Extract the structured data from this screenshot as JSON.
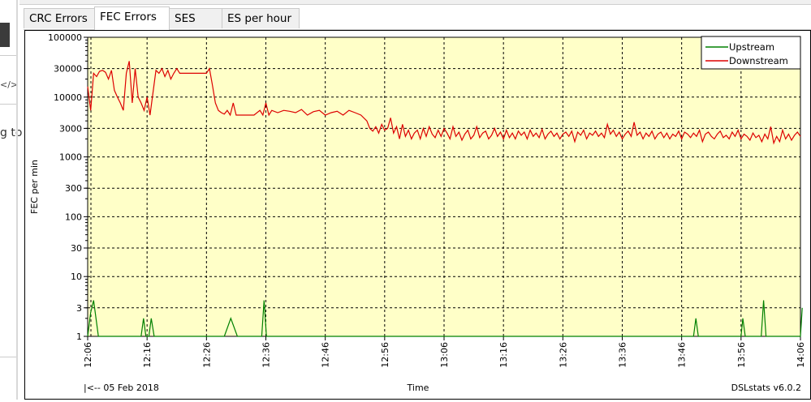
{
  "tabs": [
    {
      "label": "CRC Errors",
      "active": false
    },
    {
      "label": "FEC Errors",
      "active": true
    },
    {
      "label": "SES",
      "active": false
    },
    {
      "label": "ES per hour",
      "active": false
    }
  ],
  "left_panel": {
    "code_glyph": "</>",
    "peek_text": "g to"
  },
  "chart_footer": {
    "date_nav": "|<-- 05 Feb 2018",
    "xlabel": "Time",
    "version": "DSLstats v6.0.2"
  },
  "colors": {
    "plot_bg": "#ffffc8",
    "upstream": "#008000",
    "downstream": "#dd0000",
    "grid": "#000000"
  },
  "chart_data": {
    "type": "line",
    "title": "",
    "xlabel": "Time",
    "ylabel": "FEC per min",
    "yscale": "log",
    "ylim": [
      1,
      100000
    ],
    "yticks": [
      1,
      3,
      10,
      30,
      100,
      300,
      1000,
      3000,
      10000,
      30000,
      100000
    ],
    "ytick_labels": [
      "1",
      "3",
      "10",
      "30",
      "100",
      "300",
      "1000",
      "3000",
      "10000",
      "30000",
      "100000"
    ],
    "xticks": [
      "12:06",
      "12:16",
      "12:26",
      "12:36",
      "12:46",
      "12:56",
      "13:06",
      "13:16",
      "13:26",
      "13:36",
      "13:46",
      "13:56",
      "14:06"
    ],
    "xlim_minutes": [
      0,
      120
    ],
    "grid": true,
    "legend_position": "top-right",
    "series": [
      {
        "name": "Upstream",
        "color": "#008000",
        "points": [
          [
            0,
            1
          ],
          [
            0.5,
            2.5
          ],
          [
            1,
            4
          ],
          [
            1.8,
            1
          ],
          [
            9,
            1
          ],
          [
            9.4,
            2
          ],
          [
            9.8,
            1
          ],
          [
            10.3,
            1
          ],
          [
            10.7,
            2
          ],
          [
            11.2,
            1
          ],
          [
            23,
            1
          ],
          [
            24.1,
            2
          ],
          [
            25.2,
            1
          ],
          [
            29.3,
            1
          ],
          [
            29.7,
            4
          ],
          [
            30.1,
            1
          ],
          [
            102,
            1
          ],
          [
            102.4,
            2
          ],
          [
            102.8,
            1
          ],
          [
            110,
            1
          ],
          [
            110.3,
            2
          ],
          [
            110.7,
            1
          ],
          [
            113.4,
            1
          ],
          [
            113.8,
            4
          ],
          [
            114.2,
            1
          ],
          [
            120,
            1
          ],
          [
            120.3,
            3
          ]
        ]
      },
      {
        "name": "Downstream",
        "color": "#dd0000",
        "points": [
          [
            0,
            15000
          ],
          [
            0.5,
            6000
          ],
          [
            1,
            25000
          ],
          [
            1.5,
            22000
          ],
          [
            2,
            27000
          ],
          [
            2.5,
            28000
          ],
          [
            3,
            26000
          ],
          [
            3.5,
            20000
          ],
          [
            4,
            28000
          ],
          [
            4.5,
            13000
          ],
          [
            5,
            10000
          ],
          [
            5.5,
            8000
          ],
          [
            6,
            6000
          ],
          [
            6.5,
            25000
          ],
          [
            7,
            40000
          ],
          [
            7.5,
            8000
          ],
          [
            8,
            30000
          ],
          [
            8.5,
            10000
          ],
          [
            9,
            8000
          ],
          [
            9.5,
            6000
          ],
          [
            10,
            10000
          ],
          [
            10.5,
            5000
          ],
          [
            11,
            12000
          ],
          [
            11.5,
            28000
          ],
          [
            12,
            25000
          ],
          [
            12.5,
            30000
          ],
          [
            13,
            22000
          ],
          [
            13.5,
            28000
          ],
          [
            14,
            20000
          ],
          [
            14.5,
            25000
          ],
          [
            15,
            30000
          ],
          [
            15.5,
            25000
          ],
          [
            16,
            25000
          ],
          [
            17,
            25000
          ],
          [
            18,
            25000
          ],
          [
            19,
            25000
          ],
          [
            20,
            25000
          ],
          [
            20.5,
            30000
          ],
          [
            21,
            16000
          ],
          [
            21.5,
            8000
          ],
          [
            22,
            6000
          ],
          [
            22.5,
            5500
          ],
          [
            23,
            5200
          ],
          [
            23.5,
            6000
          ],
          [
            24,
            5000
          ],
          [
            24.5,
            8000
          ],
          [
            25,
            5000
          ],
          [
            26,
            5000
          ],
          [
            27,
            5000
          ],
          [
            28,
            5000
          ],
          [
            29,
            6000
          ],
          [
            29.5,
            5000
          ],
          [
            30,
            8000
          ],
          [
            30.5,
            5000
          ],
          [
            31,
            6000
          ],
          [
            32,
            5500
          ],
          [
            33,
            6000
          ],
          [
            34,
            5800
          ],
          [
            35,
            5500
          ],
          [
            36,
            6200
          ],
          [
            37,
            5000
          ],
          [
            38,
            5700
          ],
          [
            39,
            6000
          ],
          [
            40,
            5000
          ],
          [
            41,
            5500
          ],
          [
            42,
            5800
          ],
          [
            43,
            5000
          ],
          [
            44,
            6000
          ],
          [
            45,
            5500
          ],
          [
            46,
            5000
          ],
          [
            47,
            4000
          ],
          [
            47.5,
            3000
          ],
          [
            48,
            2700
          ],
          [
            48.5,
            3200
          ],
          [
            49,
            2500
          ],
          [
            49.5,
            3500
          ],
          [
            50,
            2800
          ],
          [
            50.5,
            3000
          ],
          [
            51,
            4500
          ],
          [
            51.5,
            2500
          ],
          [
            52,
            3200
          ],
          [
            52.5,
            2000
          ],
          [
            53,
            3500
          ],
          [
            53.5,
            2200
          ],
          [
            54,
            2800
          ],
          [
            54.5,
            2000
          ],
          [
            55,
            2500
          ],
          [
            55.5,
            2800
          ],
          [
            56,
            2000
          ],
          [
            56.5,
            3000
          ],
          [
            57,
            2200
          ],
          [
            57.5,
            3200
          ],
          [
            58,
            2400
          ],
          [
            58.5,
            2100
          ],
          [
            59,
            2800
          ],
          [
            59.5,
            2200
          ],
          [
            60,
            3000
          ],
          [
            60.5,
            2500
          ],
          [
            61,
            2000
          ],
          [
            61.5,
            3200
          ],
          [
            62,
            2200
          ],
          [
            62.5,
            2600
          ],
          [
            63,
            1900
          ],
          [
            63.5,
            2400
          ],
          [
            64,
            2800
          ],
          [
            64.5,
            2000
          ],
          [
            65,
            2300
          ],
          [
            65.5,
            3200
          ],
          [
            66,
            2100
          ],
          [
            66.5,
            2500
          ],
          [
            67,
            2700
          ],
          [
            67.5,
            2000
          ],
          [
            68,
            2300
          ],
          [
            68.5,
            3000
          ],
          [
            69,
            2200
          ],
          [
            69.5,
            2600
          ],
          [
            70,
            2000
          ],
          [
            70.5,
            2800
          ],
          [
            71,
            2100
          ],
          [
            71.5,
            2500
          ],
          [
            72,
            2000
          ],
          [
            72.5,
            2700
          ],
          [
            73,
            2300
          ],
          [
            73.5,
            2600
          ],
          [
            74,
            2000
          ],
          [
            74.5,
            2800
          ],
          [
            75,
            2200
          ],
          [
            75.5,
            2500
          ],
          [
            76,
            2100
          ],
          [
            76.5,
            2900
          ],
          [
            77,
            2000
          ],
          [
            77.5,
            2400
          ],
          [
            78,
            2700
          ],
          [
            78.5,
            2200
          ],
          [
            79,
            2500
          ],
          [
            79.5,
            2000
          ],
          [
            80,
            2400
          ],
          [
            80.5,
            2600
          ],
          [
            81,
            2200
          ],
          [
            81.5,
            2700
          ],
          [
            82,
            1800
          ],
          [
            82.5,
            2600
          ],
          [
            83,
            2300
          ],
          [
            83.5,
            2800
          ],
          [
            84,
            2000
          ],
          [
            84.5,
            2500
          ],
          [
            85,
            2300
          ],
          [
            85.5,
            2700
          ],
          [
            86,
            2200
          ],
          [
            86.5,
            2500
          ],
          [
            87,
            2100
          ],
          [
            87.5,
            3500
          ],
          [
            88,
            2400
          ],
          [
            88.5,
            2800
          ],
          [
            89,
            2200
          ],
          [
            89.5,
            2600
          ],
          [
            90,
            2000
          ],
          [
            90.5,
            2400
          ],
          [
            91,
            2700
          ],
          [
            91.5,
            2200
          ],
          [
            92,
            3800
          ],
          [
            92.5,
            2300
          ],
          [
            93,
            2600
          ],
          [
            93.5,
            2000
          ],
          [
            94,
            2500
          ],
          [
            94.5,
            2200
          ],
          [
            95,
            2700
          ],
          [
            95.5,
            2000
          ],
          [
            96,
            2400
          ],
          [
            96.5,
            2600
          ],
          [
            97,
            2100
          ],
          [
            97.5,
            2500
          ],
          [
            98,
            2000
          ],
          [
            98.5,
            2400
          ],
          [
            99,
            2200
          ],
          [
            99.5,
            2700
          ],
          [
            100,
            2000
          ],
          [
            100.5,
            2600
          ],
          [
            101,
            2400
          ],
          [
            101.5,
            2100
          ],
          [
            102,
            2500
          ],
          [
            102.5,
            2200
          ],
          [
            103,
            2800
          ],
          [
            103.5,
            1800
          ],
          [
            104,
            2400
          ],
          [
            104.5,
            2600
          ],
          [
            105,
            2200
          ],
          [
            105.5,
            2000
          ],
          [
            106,
            2400
          ],
          [
            106.5,
            2700
          ],
          [
            107,
            2100
          ],
          [
            107.5,
            2300
          ],
          [
            108,
            2000
          ],
          [
            108.5,
            2600
          ],
          [
            109,
            2200
          ],
          [
            109.5,
            2800
          ],
          [
            110,
            2000
          ],
          [
            110.5,
            2400
          ],
          [
            111,
            2200
          ],
          [
            111.5,
            1900
          ],
          [
            112,
            2500
          ],
          [
            112.5,
            2100
          ],
          [
            113,
            2300
          ],
          [
            113.5,
            1800
          ],
          [
            114,
            2400
          ],
          [
            114.5,
            2000
          ],
          [
            115,
            3200
          ],
          [
            115.5,
            1700
          ],
          [
            116,
            2200
          ],
          [
            116.5,
            1800
          ],
          [
            117,
            2800
          ],
          [
            117.5,
            2000
          ],
          [
            118,
            2400
          ],
          [
            118.5,
            1900
          ],
          [
            119,
            2300
          ],
          [
            119.5,
            2600
          ],
          [
            120,
            2200
          ]
        ]
      }
    ]
  }
}
